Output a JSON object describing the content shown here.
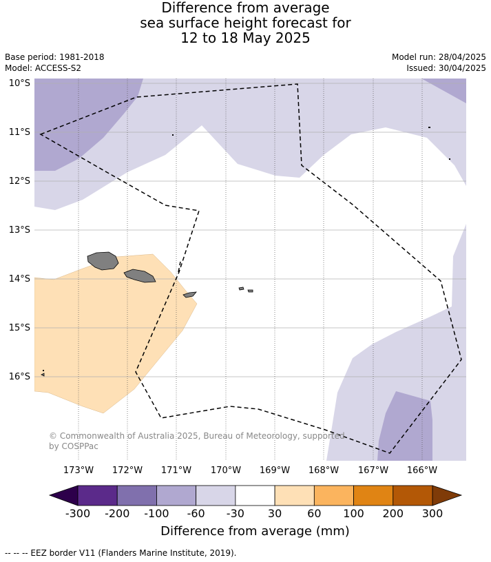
{
  "title": {
    "line1": "Difference from average",
    "line2": "sea surface height forecast for",
    "line3": "12 to 18 May 2025"
  },
  "meta": {
    "base_period": "Base period: 1981-2018",
    "model": "Model: ACCESS-S2",
    "model_run": "Model run: 28/04/2025",
    "issued": "Issued: 30/04/2025"
  },
  "map": {
    "lat_labels": [
      "10°S",
      "11°S",
      "12°S",
      "13°S",
      "14°S",
      "15°S",
      "16°S"
    ],
    "lon_labels": [
      "173°W",
      "172°W",
      "171°W",
      "170°W",
      "169°W",
      "168°W",
      "167°W",
      "166°W"
    ],
    "copyright_line1": "© Commonwealth of Australia 2025, Bureau of Meteorology, supported",
    "copyright_line2": "by COSPPac",
    "land_color": "#808080",
    "eez_style": "dashed black"
  },
  "colorbar": {
    "title": "Difference from average (mm)",
    "tick_labels": [
      "-300",
      "-200",
      "-100",
      "-60",
      "-30",
      "30",
      "60",
      "100",
      "200",
      "300"
    ],
    "bins": [
      {
        "color": "#5b2a8a"
      },
      {
        "color": "#8070ad"
      },
      {
        "color": "#b0a8d0"
      },
      {
        "color": "#d8d6e8"
      },
      {
        "color": "#ffffff"
      },
      {
        "color": "#fee0b6"
      },
      {
        "color": "#fbb45e"
      },
      {
        "color": "#e08414"
      },
      {
        "color": "#b35806"
      }
    ],
    "low_extend_color": "#2d004b",
    "high_extend_color": "#7f3b08"
  },
  "footnote": "-- -- -- EEZ border V11 (Flanders Marine Institute, 2019)."
}
